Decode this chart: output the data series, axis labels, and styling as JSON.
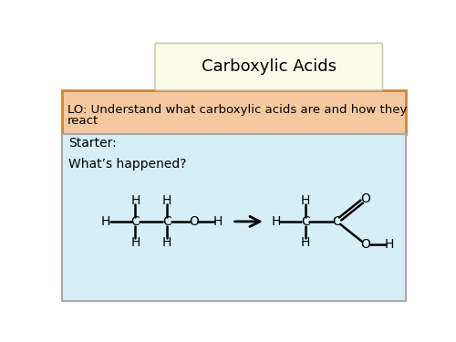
{
  "title": "Carboxylic Acids",
  "lo_text": "LO: Understand what carboxylic acids are and how they\nreact",
  "starter_text": "Starter:",
  "question_text": "What’s happened?",
  "title_bg": "#FAFAE8",
  "lo_bg": "#F5C9A0",
  "content_bg": "#D6EEF8",
  "lo_border": "#D4843A",
  "content_border": "#AAAAAA",
  "title_border": "#CCCCBB",
  "fig_bg": "#FFFFFF"
}
